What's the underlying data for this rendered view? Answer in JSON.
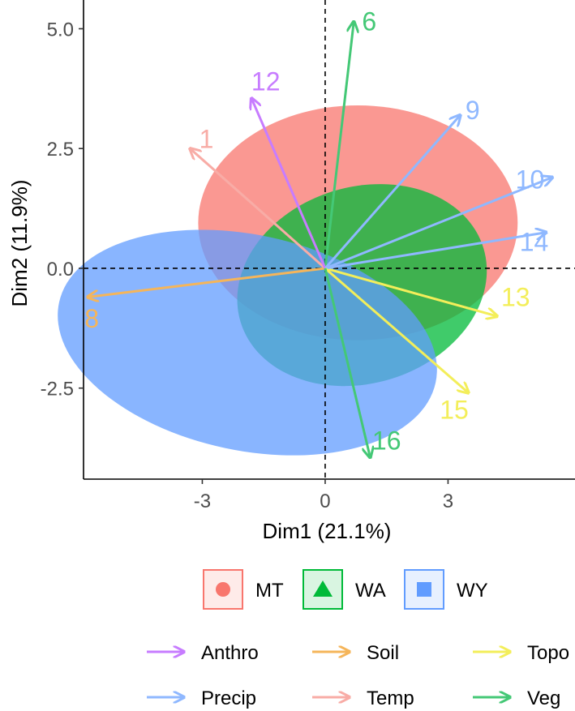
{
  "chart_data": {
    "type": "scatter",
    "title": "",
    "xlabel": "Dim1 (21.1%)",
    "ylabel": "Dim2 (11.9%)",
    "xlim": [
      -5.9,
      6.1
    ],
    "ylim": [
      -4.4,
      5.6
    ],
    "x_ticks": [
      -3,
      0,
      3
    ],
    "x_tick_labels": [
      "-3",
      "0",
      "3"
    ],
    "y_ticks": [
      -2.5,
      0.0,
      2.5,
      5.0
    ],
    "y_tick_labels": [
      "-2.5",
      "0.0",
      "2.5",
      "5.0"
    ],
    "reference_lines": {
      "x": 0,
      "y": 0,
      "style": "dashed"
    },
    "grid": false,
    "groups": [
      {
        "name": "MT",
        "color": "#f8766d",
        "shape": "circle",
        "ellipse": {
          "cx": 0.8,
          "cy": 0.95,
          "rx": 3.9,
          "ry": 2.45
        }
      },
      {
        "name": "WA",
        "color": "#00ba38",
        "shape": "triangle",
        "ellipse": {
          "cx": 0.9,
          "cy": -0.35,
          "rx": 3.1,
          "ry": 2.05,
          "angle_deg": -17
        }
      },
      {
        "name": "WY",
        "color": "#619cff",
        "shape": "square",
        "ellipse": {
          "cx": -1.9,
          "cy": -1.55,
          "rx": 4.7,
          "ry": 2.25,
          "angle_deg": 12
        }
      }
    ],
    "arrows": [
      {
        "label": "1",
        "x": -3.3,
        "y": 2.5,
        "category": "Temp"
      },
      {
        "label": "6",
        "x": 0.7,
        "y": 5.15,
        "category": "Veg"
      },
      {
        "label": "8",
        "x": -5.8,
        "y": -0.6,
        "category": "Soil"
      },
      {
        "label": "9",
        "x": 3.3,
        "y": 3.2,
        "category": "Precip"
      },
      {
        "label": "10",
        "x": 5.55,
        "y": 1.9,
        "category": "Precip"
      },
      {
        "label": "12",
        "x": -1.8,
        "y": 3.55,
        "category": "Anthro"
      },
      {
        "label": "13",
        "x": 4.2,
        "y": -1.0,
        "category": "Topo"
      },
      {
        "label": "14",
        "x": 5.4,
        "y": 0.75,
        "category": "Precip"
      },
      {
        "label": "15",
        "x": 3.5,
        "y": -2.6,
        "category": "Topo"
      },
      {
        "label": "16",
        "x": 1.1,
        "y": -3.95,
        "category": "Veg"
      }
    ],
    "arrow_categories": [
      {
        "name": "Anthro",
        "color": "#c77cff"
      },
      {
        "name": "Soil",
        "color": "#f5b55a"
      },
      {
        "name": "Topo",
        "color": "#f3ee5a"
      },
      {
        "name": "Precip",
        "color": "#8fb8ff"
      },
      {
        "name": "Temp",
        "color": "#f8aca6"
      },
      {
        "name": "Veg",
        "color": "#44c876"
      }
    ],
    "legend_position": "bottom"
  }
}
